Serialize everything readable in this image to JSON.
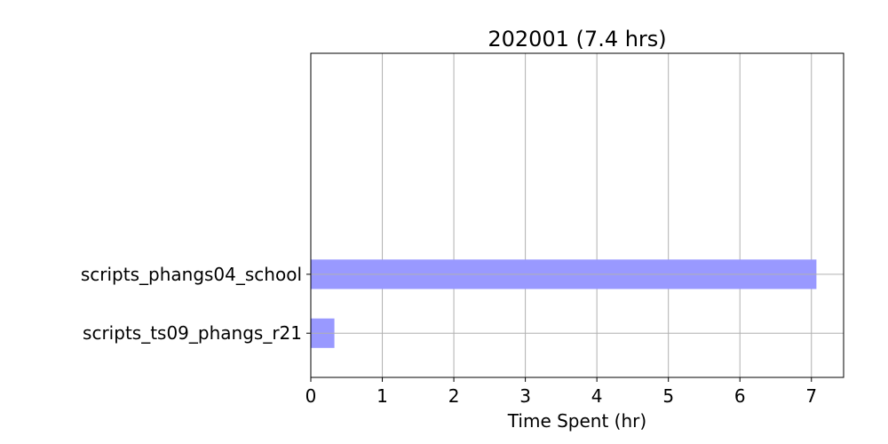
{
  "chart_data": {
    "type": "bar",
    "orientation": "horizontal",
    "title": "202001 (7.4 hrs)",
    "xlabel": "Time Spent (hr)",
    "ylabel": "",
    "categories": [
      "scripts_ts09_phangs_r21",
      "scripts_phangs04_school"
    ],
    "values": [
      0.33,
      7.07
    ],
    "xlim": [
      0,
      7.45
    ],
    "xticks": [
      0,
      1,
      2,
      3,
      4,
      5,
      6,
      7
    ],
    "ylim": [
      -0.75,
      4.75
    ],
    "grid": true,
    "bar_color": "#9999ff"
  }
}
